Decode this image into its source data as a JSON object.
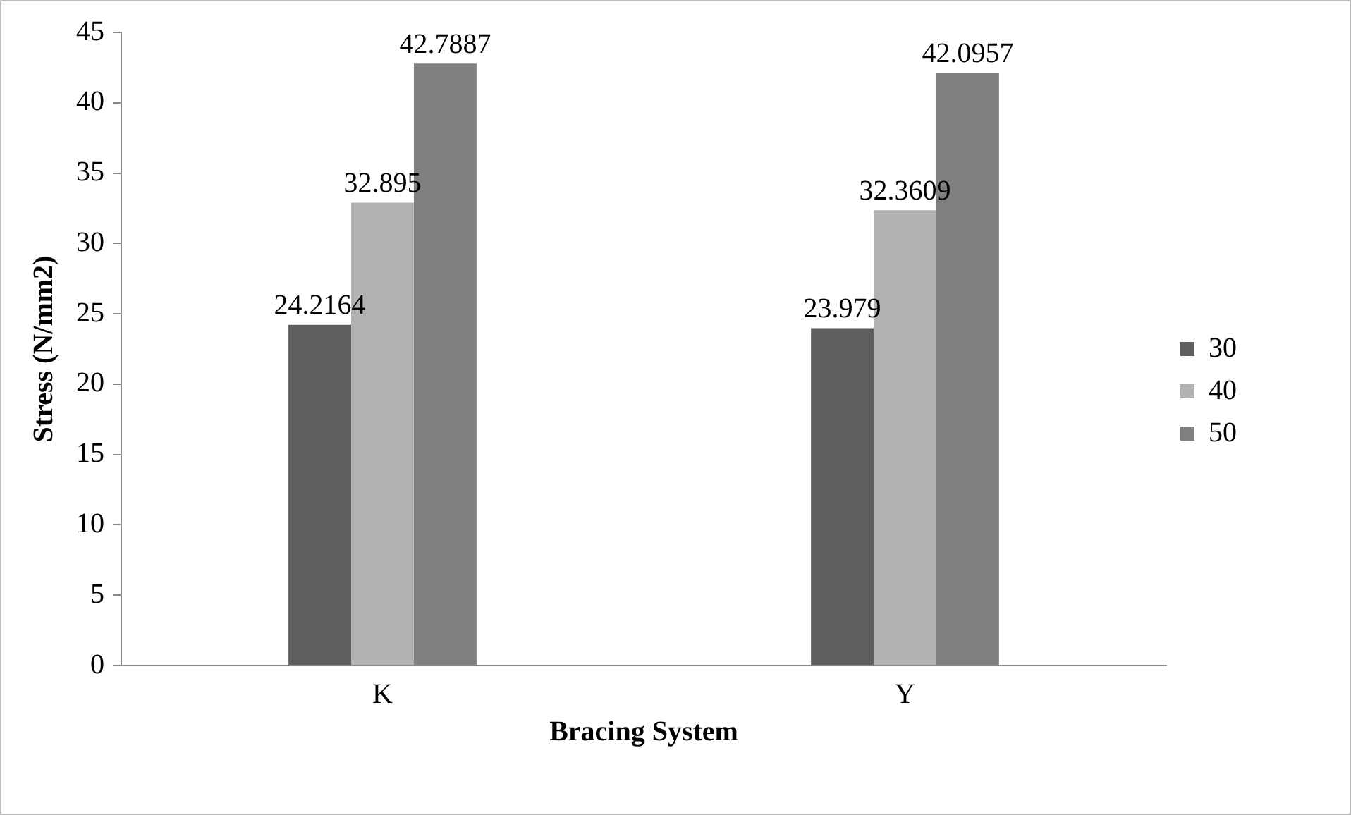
{
  "chart_data": {
    "type": "bar",
    "xlabel": "Bracing System",
    "ylabel": "Stress (N/mm2)",
    "categories": [
      "K",
      "Y"
    ],
    "series": [
      {
        "name": "30",
        "color": "#5f5f5f",
        "values": [
          24.2164,
          23.979
        ]
      },
      {
        "name": "40",
        "color": "#b2b2b2",
        "values": [
          32.895,
          32.3609
        ]
      },
      {
        "name": "50",
        "color": "#808080",
        "values": [
          42.7887,
          42.0957
        ]
      }
    ],
    "ylim": [
      0,
      45
    ],
    "yticks": [
      0,
      5,
      10,
      15,
      20,
      25,
      30,
      35,
      40,
      45
    ],
    "grid": false,
    "legend": "right",
    "data_labels": true
  }
}
